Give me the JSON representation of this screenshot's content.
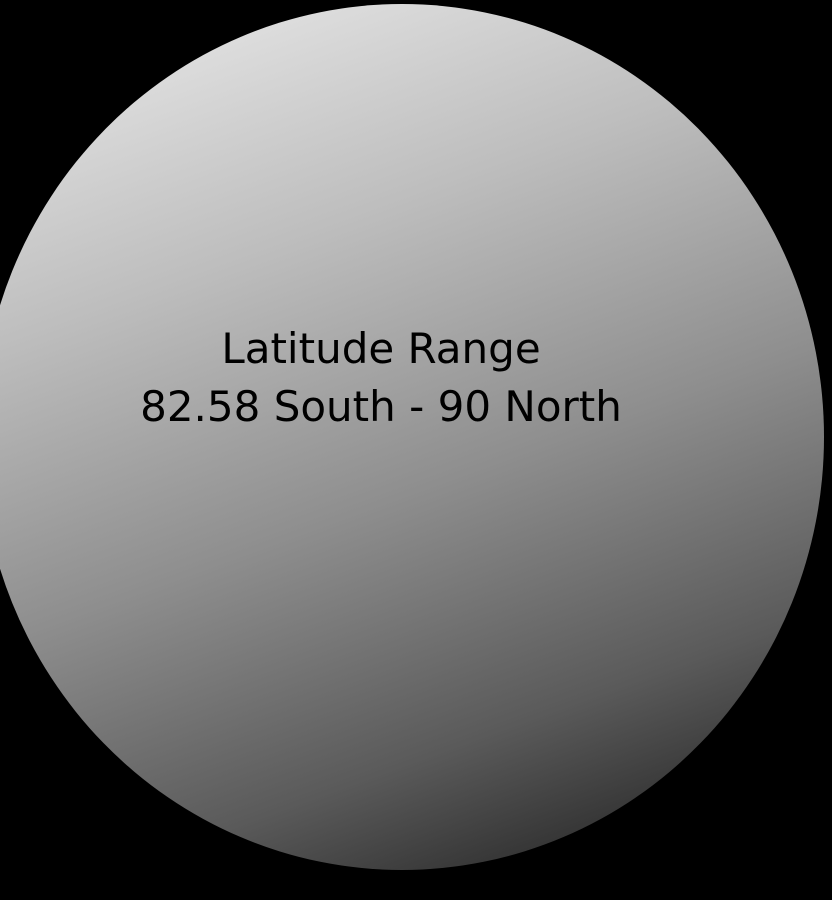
{
  "colors": {
    "background": "#000000",
    "sphere_highlight": "#eeeeee",
    "sphere_shadow": "#141414",
    "text": "#000000"
  },
  "caption": {
    "line1": "Latitude Range",
    "line2": "82.58 South - 90 North"
  }
}
